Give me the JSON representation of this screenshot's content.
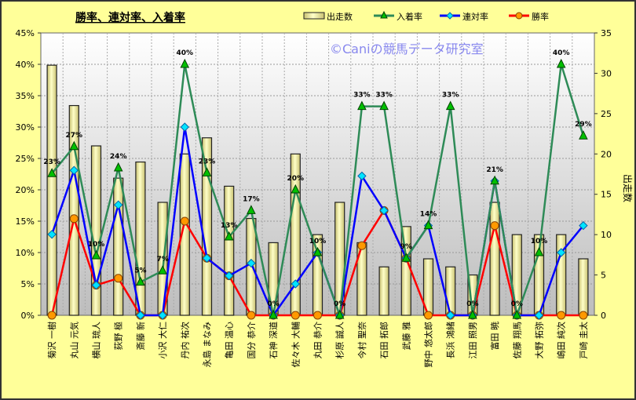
{
  "chart_data": {
    "type": "bar+line",
    "title": "勝率、連対率、入着率",
    "watermark": "©Caniの競馬データ研究室",
    "ylabel_right": "出走数",
    "ylim_left": [
      0,
      45
    ],
    "ylim_right": [
      0,
      35
    ],
    "yticks_left": [
      "0%",
      "5%",
      "10%",
      "15%",
      "20%",
      "25%",
      "30%",
      "35%",
      "40%",
      "45%"
    ],
    "yticks_right": [
      "0",
      "5",
      "10",
      "15",
      "20",
      "25",
      "30",
      "35"
    ],
    "categories": [
      "菊沢 一樹",
      "丸山 元気",
      "横山 琉人",
      "荻野 極",
      "斎藤 新",
      "小沢 大仁",
      "丹内 祐次",
      "永島 まなみ",
      "亀田 温心",
      "国分 恭介",
      "石神 深道",
      "佐々木 大輔",
      "丸田 恭介",
      "杉原 誠人",
      "今村 聖奈",
      "石田 拓郎",
      "武藤 雅",
      "野中 悠太郎",
      "長浜 鴻緒",
      "江田 照男",
      "富田 暁",
      "佐藤 翔馬",
      "大野 拓弥",
      "嶋田 純次",
      "戸崎 圭太"
    ],
    "legend": [
      "出走数",
      "入着率",
      "連対率",
      "勝率"
    ],
    "series": [
      {
        "name": "出走数",
        "type": "bar",
        "axis": "right",
        "color": "#F0E68C",
        "values": [
          31,
          26,
          21,
          17,
          19,
          14,
          20,
          22,
          16,
          12,
          9,
          20,
          10,
          14,
          9,
          6,
          11,
          7,
          6,
          5,
          14,
          10,
          10,
          10,
          7
        ]
      },
      {
        "name": "入着率",
        "type": "line",
        "axis": "left",
        "color": "#2E8B57",
        "marker": "#00C000",
        "values": [
          22.6,
          26.9,
          9.5,
          23.5,
          5.3,
          7.1,
          40,
          22.7,
          12.5,
          16.7,
          0,
          20,
          10,
          0,
          33.3,
          33.3,
          9.1,
          14.3,
          33.3,
          0,
          21.4,
          0,
          10,
          40,
          28.6
        ],
        "labels": [
          "23%",
          "27%",
          "10%",
          "24%",
          "5%",
          "7%",
          "40%",
          "23%",
          "13%",
          "17%",
          "0%",
          "20%",
          "10%",
          "0%",
          "33%",
          "33%",
          "9%",
          "14%",
          "33%",
          "0%",
          "21%",
          "0%",
          "10%",
          "40%",
          "29%"
        ]
      },
      {
        "name": "連対率",
        "type": "line",
        "axis": "left",
        "color": "#0000FF",
        "marker": "#00E5FF",
        "values": [
          12.9,
          23.1,
          4.8,
          17.6,
          0,
          0,
          30,
          9.1,
          6.3,
          8.3,
          0,
          5,
          10,
          0,
          22.2,
          16.7,
          9.1,
          14.3,
          0,
          0,
          21.4,
          0,
          0,
          10,
          14.3
        ]
      },
      {
        "name": "勝率",
        "type": "line",
        "axis": "left",
        "color": "#FF0000",
        "marker": "#FF9900",
        "values": [
          0,
          15.4,
          4.8,
          5.9,
          0,
          0,
          15,
          9.1,
          6.3,
          0,
          0,
          0,
          0,
          0,
          11.1,
          16.7,
          9.1,
          0,
          0,
          0,
          14.3,
          0,
          0,
          0,
          0
        ]
      }
    ]
  }
}
